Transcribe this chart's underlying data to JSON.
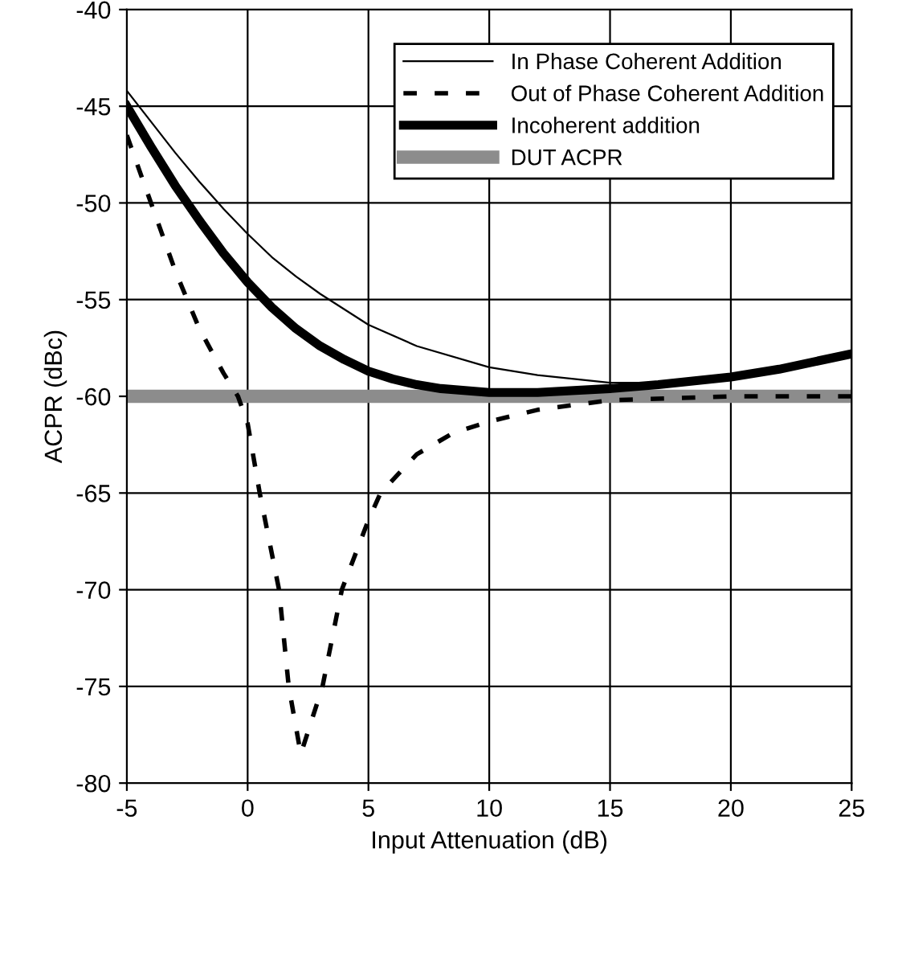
{
  "chart_data": {
    "type": "line",
    "xlabel": "Input Attenuation (dB)",
    "ylabel": "ACPR (dBc)",
    "xlim": [
      -5,
      25
    ],
    "xticks": [
      -5,
      0,
      5,
      10,
      15,
      20,
      25
    ],
    "ylim": [
      -80,
      -40
    ],
    "yticks": [
      -80,
      -75,
      -70,
      -65,
      -60,
      -55,
      -50,
      -45,
      -40
    ],
    "grid": true,
    "legend": "top right",
    "series": [
      {
        "name": "In Phase Coherent Addition",
        "color": "#000000",
        "line_style": "solid",
        "x": [
          -5,
          -4,
          -3,
          -2,
          -1,
          0,
          1,
          2,
          3,
          5,
          7,
          10,
          12,
          15,
          17,
          20,
          22,
          25
        ],
        "values": [
          -44.2,
          -45.8,
          -47.4,
          -48.9,
          -50.3,
          -51.6,
          -52.8,
          -53.8,
          -54.7,
          -56.3,
          -57.4,
          -58.5,
          -58.9,
          -59.3,
          -59.3,
          -59.0,
          -58.6,
          -57.8
        ]
      },
      {
        "name": "Out of Phase Coherent Addition",
        "color": "#000000",
        "line_style": "dashed",
        "x": [
          -5,
          -4,
          -3,
          -2.5,
          -2,
          -1,
          -0.4,
          0,
          0.5,
          1.3,
          1.7,
          2.2,
          3.1,
          3.9,
          5,
          5.5,
          7,
          8.5,
          10,
          12,
          15,
          20,
          25
        ],
        "values": [
          -46.5,
          -50,
          -53.5,
          -55,
          -56.5,
          -58.8,
          -60,
          -61.4,
          -65,
          -70,
          -75,
          -78.5,
          -75,
          -70,
          -66.4,
          -65,
          -63,
          -61.9,
          -61.3,
          -60.7,
          -60.2,
          -60.0,
          -60.0
        ]
      },
      {
        "name": "Incoherent addition",
        "color": "#000000",
        "line_style": "solid",
        "x": [
          -5,
          -4,
          -3,
          -2,
          -1,
          0,
          1,
          2,
          3,
          4,
          5,
          6,
          7,
          8,
          10,
          12,
          15,
          17,
          20,
          22,
          25
        ],
        "values": [
          -45,
          -47.1,
          -49.1,
          -50.9,
          -52.6,
          -54.1,
          -55.4,
          -56.5,
          -57.4,
          -58.1,
          -58.7,
          -59.1,
          -59.4,
          -59.6,
          -59.8,
          -59.8,
          -59.6,
          -59.4,
          -59.0,
          -58.6,
          -57.8
        ]
      },
      {
        "name": "DUT ACPR",
        "color": "#8c8c8c",
        "line_style": "solid",
        "x": [
          -5,
          25
        ],
        "values": [
          -60,
          -60
        ]
      }
    ]
  }
}
